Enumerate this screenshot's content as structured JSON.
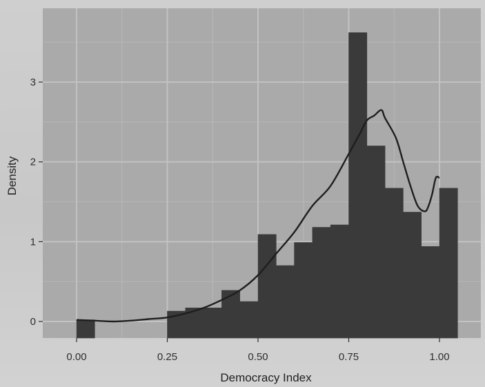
{
  "chart_data": {
    "type": "bar",
    "xlabel": "Democracy Index",
    "ylabel": "Density",
    "xlim": [
      0.0,
      1.05
    ],
    "ylim": [
      -0.1,
      4.0
    ],
    "x_ticks": [
      "0.00",
      "0.25",
      "0.50",
      "0.75",
      "1.00"
    ],
    "x_tick_values": [
      0.0,
      0.25,
      0.5,
      0.75,
      1.0
    ],
    "y_ticks": [
      "0",
      "1",
      "2",
      "3"
    ],
    "y_tick_values": [
      0,
      1,
      2,
      3
    ],
    "bin_width": 0.05,
    "bins": [
      {
        "x0": 0.0,
        "value": 0.02
      },
      {
        "x0": 0.05,
        "value": 0.0
      },
      {
        "x0": 0.1,
        "value": 0.0
      },
      {
        "x0": 0.15,
        "value": 0.0
      },
      {
        "x0": 0.2,
        "value": 0.0
      },
      {
        "x0": 0.25,
        "value": 0.13
      },
      {
        "x0": 0.3,
        "value": 0.17
      },
      {
        "x0": 0.35,
        "value": 0.17
      },
      {
        "x0": 0.4,
        "value": 0.39
      },
      {
        "x0": 0.45,
        "value": 0.25
      },
      {
        "x0": 0.5,
        "value": 1.09
      },
      {
        "x0": 0.55,
        "value": 0.7
      },
      {
        "x0": 0.6,
        "value": 0.99
      },
      {
        "x0": 0.65,
        "value": 1.18
      },
      {
        "x0": 0.7,
        "value": 1.21
      },
      {
        "x0": 0.75,
        "value": 3.62
      },
      {
        "x0": 0.8,
        "value": 2.2
      },
      {
        "x0": 0.85,
        "value": 1.67
      },
      {
        "x0": 0.9,
        "value": 1.37
      },
      {
        "x0": 0.95,
        "value": 0.94
      },
      {
        "x0": 1.0,
        "value": 1.67
      }
    ],
    "density_curve": {
      "x": [
        0.0,
        0.05,
        0.1,
        0.15,
        0.2,
        0.25,
        0.3,
        0.35,
        0.4,
        0.45,
        0.5,
        0.55,
        0.6,
        0.65,
        0.7,
        0.75,
        0.78,
        0.8,
        0.82,
        0.84,
        0.85,
        0.88,
        0.9,
        0.92,
        0.94,
        0.96,
        0.97,
        0.98,
        0.99,
        1.0
      ],
      "y": [
        0.02,
        0.01,
        0.0,
        0.01,
        0.03,
        0.05,
        0.1,
        0.17,
        0.27,
        0.39,
        0.58,
        0.85,
        1.12,
        1.45,
        1.7,
        2.1,
        2.35,
        2.52,
        2.58,
        2.65,
        2.55,
        2.3,
        2.0,
        1.7,
        1.45,
        1.38,
        1.45,
        1.6,
        1.8,
        1.8
      ]
    },
    "colors": {
      "panel": "#aaaaaa",
      "grid": "#c2c2c2",
      "bar": "#3a3a3a",
      "curve": "#1e1e1e",
      "axis_text": "#2e2e2e"
    },
    "grid": true
  }
}
